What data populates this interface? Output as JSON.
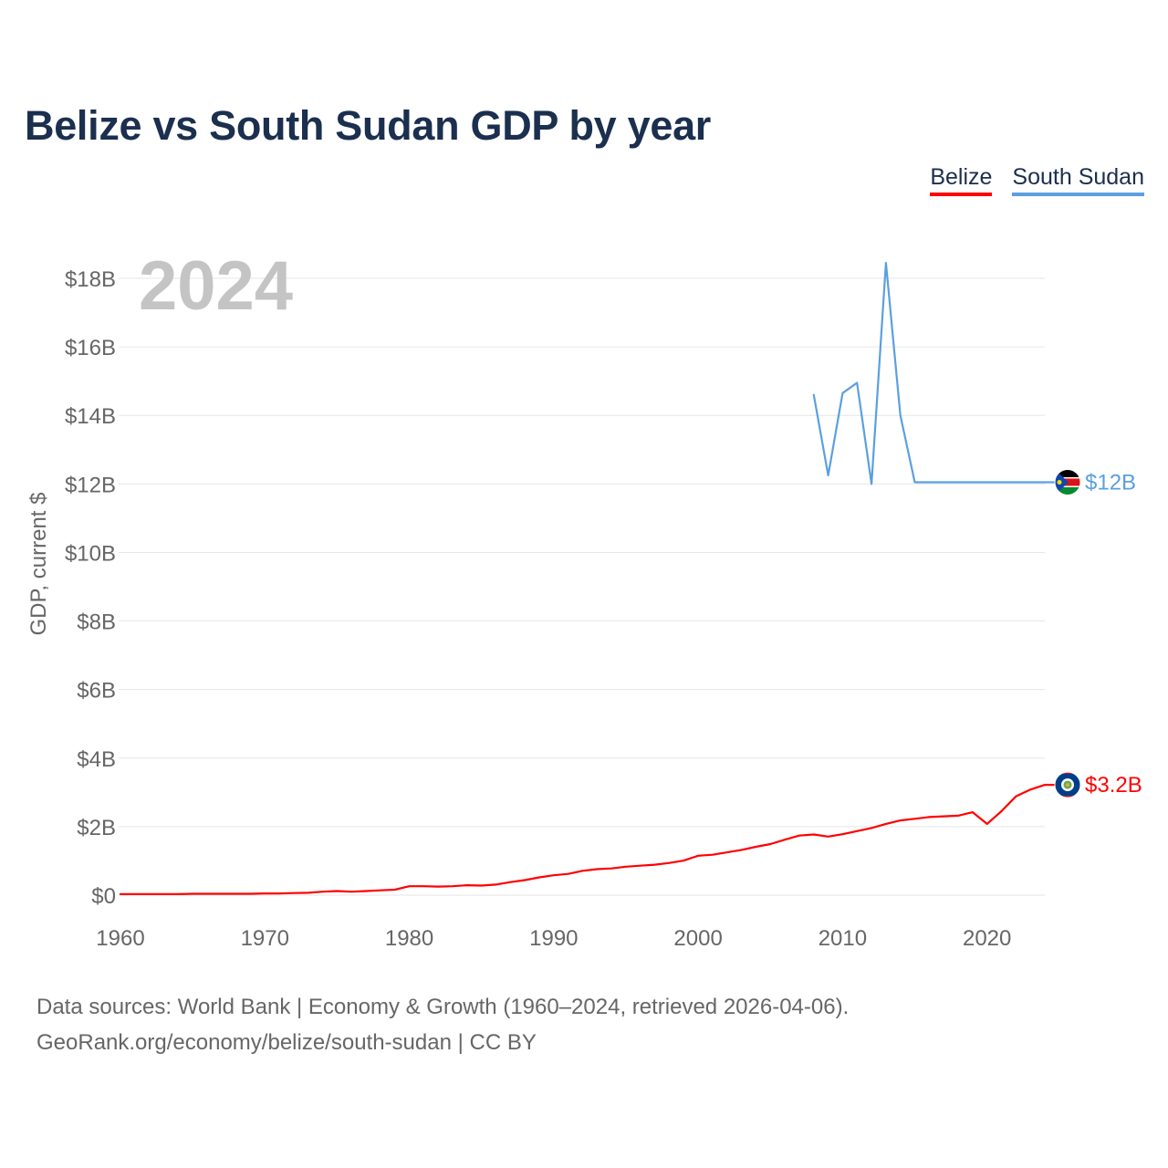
{
  "chart_data": {
    "type": "line",
    "title": "Belize vs South Sudan GDP by year",
    "ylabel": "GDP, current $",
    "xlabel": "",
    "year_overlay": "2024",
    "xlim": [
      1960,
      2025
    ],
    "ylim": [
      0,
      18
    ],
    "y_unit": "billions USD",
    "grid": true,
    "legend_position": "top-right",
    "x_ticks": [
      {
        "value": 1960,
        "label": "1960"
      },
      {
        "value": 1970,
        "label": "1970"
      },
      {
        "value": 1980,
        "label": "1980"
      },
      {
        "value": 1990,
        "label": "1990"
      },
      {
        "value": 2000,
        "label": "2000"
      },
      {
        "value": 2010,
        "label": "2010"
      },
      {
        "value": 2020,
        "label": "2020"
      }
    ],
    "y_ticks": [
      {
        "value": 0,
        "label": "$0"
      },
      {
        "value": 2,
        "label": "$2B"
      },
      {
        "value": 4,
        "label": "$4B"
      },
      {
        "value": 6,
        "label": "$6B"
      },
      {
        "value": 8,
        "label": "$8B"
      },
      {
        "value": 10,
        "label": "$10B"
      },
      {
        "value": 12,
        "label": "$12B"
      },
      {
        "value": 14,
        "label": "$14B"
      },
      {
        "value": 16,
        "label": "$16B"
      },
      {
        "value": 18,
        "label": "$18B"
      }
    ],
    "series": [
      {
        "name": "Belize",
        "key": "belize",
        "color": "#ff0000",
        "end_label": "$3.2B",
        "flag": "belize",
        "x": [
          1960,
          1961,
          1962,
          1963,
          1964,
          1965,
          1966,
          1967,
          1968,
          1969,
          1970,
          1971,
          1972,
          1973,
          1974,
          1975,
          1976,
          1977,
          1978,
          1979,
          1980,
          1981,
          1982,
          1983,
          1984,
          1985,
          1986,
          1987,
          1988,
          1989,
          1990,
          1991,
          1992,
          1993,
          1994,
          1995,
          1996,
          1997,
          1998,
          1999,
          2000,
          2001,
          2002,
          2003,
          2004,
          2005,
          2006,
          2007,
          2008,
          2009,
          2010,
          2011,
          2012,
          2013,
          2014,
          2015,
          2016,
          2017,
          2018,
          2019,
          2020,
          2021,
          2022,
          2023,
          2024,
          2025
        ],
        "values": [
          0.03,
          0.03,
          0.03,
          0.03,
          0.03,
          0.04,
          0.04,
          0.04,
          0.04,
          0.04,
          0.05,
          0.05,
          0.06,
          0.07,
          0.1,
          0.12,
          0.1,
          0.12,
          0.14,
          0.16,
          0.26,
          0.26,
          0.25,
          0.26,
          0.29,
          0.28,
          0.31,
          0.38,
          0.44,
          0.52,
          0.58,
          0.62,
          0.71,
          0.76,
          0.78,
          0.83,
          0.86,
          0.89,
          0.94,
          1.01,
          1.15,
          1.18,
          1.25,
          1.32,
          1.41,
          1.49,
          1.62,
          1.74,
          1.77,
          1.71,
          1.78,
          1.87,
          1.96,
          2.08,
          2.18,
          2.23,
          2.28,
          2.3,
          2.32,
          2.42,
          2.08,
          2.45,
          2.88,
          3.08,
          3.22,
          3.22
        ]
      },
      {
        "name": "South Sudan",
        "key": "ssudan",
        "color": "#5b9fe0",
        "end_label": "$12B",
        "flag": "south-sudan",
        "x": [
          2008,
          2009,
          2010,
          2011,
          2012,
          2013,
          2014,
          2015,
          2016,
          2017,
          2018,
          2019,
          2020,
          2021,
          2022,
          2023,
          2024,
          2025
        ],
        "values": [
          14.6,
          12.25,
          14.65,
          14.95,
          12.0,
          18.45,
          14.0,
          12.05,
          12.05,
          12.05,
          12.05,
          12.05,
          12.05,
          12.05,
          12.05,
          12.05,
          12.05,
          12.05
        ]
      }
    ],
    "source_line1": "Data sources: World Bank | Economy & Growth (1960–2024, retrieved 2026-04-06).",
    "source_line2": "GeoRank.org/economy/belize/south-sudan | CC BY"
  },
  "colors": {
    "title": "#1b2f4e",
    "belize": "#ff0000",
    "ssudan": "#5b9fe0",
    "grid": "#e6e6e6",
    "axis_text": "#666666",
    "year_overlay": "#c4c4c4"
  }
}
